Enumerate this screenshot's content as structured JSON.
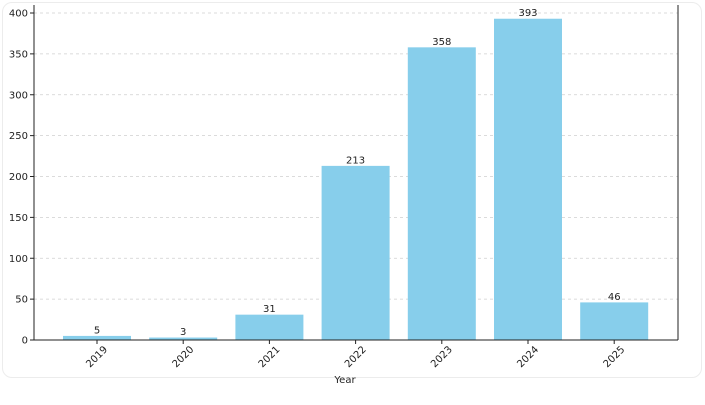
{
  "chart_data": {
    "type": "bar",
    "categories": [
      "2019",
      "2020",
      "2021",
      "2022",
      "2023",
      "2024",
      "2025"
    ],
    "values": [
      5,
      3,
      31,
      213,
      358,
      393,
      46
    ],
    "data_labels": [
      "5",
      "3",
      "31",
      "213",
      "358",
      "393",
      "46"
    ],
    "yticks": [
      "0",
      "50",
      "100",
      "150",
      "200",
      "250",
      "300",
      "350",
      "400"
    ],
    "title": "",
    "xlabel": "Year",
    "ylabel": "",
    "ylim": [
      0,
      400
    ],
    "grid": "y-dashed",
    "bar_color": "#87ceeb",
    "legend": "none"
  }
}
